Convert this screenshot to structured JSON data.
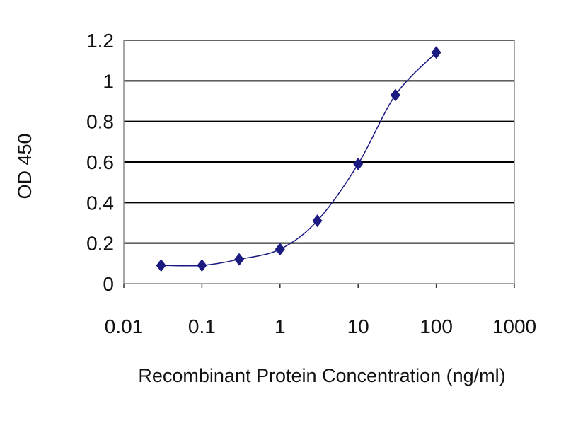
{
  "chart_data": {
    "type": "line",
    "title": "",
    "xlabel": "Recombinant Protein Concentration (ng/ml)",
    "ylabel": "OD 450",
    "xscale": "log",
    "xlim": [
      0.01,
      1000
    ],
    "ylim": [
      0,
      1.2
    ],
    "x_ticks": [
      "0.01",
      "0.1",
      "1",
      "10",
      "100",
      "1000"
    ],
    "y_ticks": [
      "0",
      "0.2",
      "0.4",
      "0.6",
      "0.8",
      "1",
      "1.2"
    ],
    "grid": "horizontal",
    "legend": "none",
    "series": [
      {
        "x": [
          0.03,
          0.1,
          0.3,
          1,
          3,
          10,
          30,
          100
        ],
        "y": [
          0.09,
          0.09,
          0.12,
          0.17,
          0.31,
          0.59,
          0.93,
          1.14
        ],
        "marker": "diamond",
        "smooth": true,
        "color": "#1a1a80"
      }
    ]
  }
}
